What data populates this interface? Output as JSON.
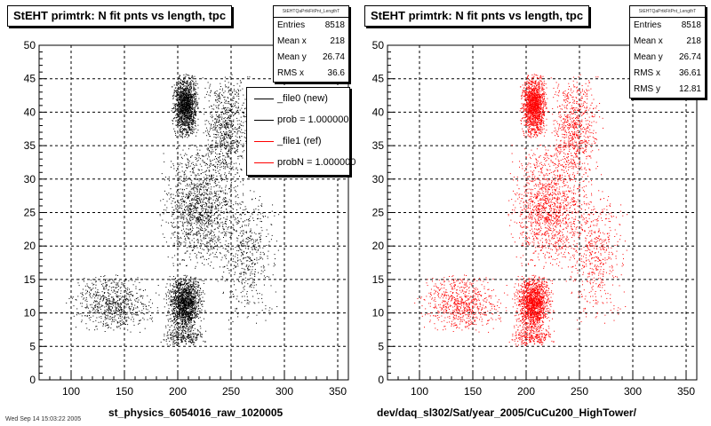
{
  "chart_data": [
    {
      "type": "scatter",
      "title": "StEHT primtrk: N fit pnts vs length, tpc",
      "xlabel": "st_physics_6054016_raw_1020005",
      "ylabel": "",
      "xlim": [
        70,
        360
      ],
      "ylim": [
        0,
        50
      ],
      "x_ticks": [
        100,
        150,
        200,
        250,
        300,
        350
      ],
      "y_ticks": [
        0,
        5,
        10,
        15,
        20,
        25,
        30,
        35,
        40,
        45,
        50
      ],
      "grid": true,
      "point_color": "#000000",
      "stats": {
        "header": "StEHTQaPrtkFitPnt_LengthT",
        "rows": [
          {
            "label": "Entries",
            "value": "8518"
          },
          {
            "label": "Mean x",
            "value": "218"
          },
          {
            "label": "Mean y",
            "value": "26.74"
          },
          {
            "label": "RMS x",
            "value": "36.6"
          }
        ]
      },
      "legend": {
        "placement": "top-right",
        "entries": [
          {
            "label": "_file0 (new)",
            "color": "#000000"
          },
          {
            "label": "prob = 1.000000",
            "color": "#000000"
          },
          {
            "label": "_file1 (ref)",
            "color": "#ff0000"
          },
          {
            "label": "probN = 1.000000",
            "color": "#ff0000"
          }
        ]
      },
      "clusters": [
        {
          "x_range": [
            192,
            222
          ],
          "y_range": [
            36,
            46
          ],
          "count": 1500
        },
        {
          "x_range": [
            185,
            228
          ],
          "y_range": [
            7,
            16
          ],
          "count": 1500
        },
        {
          "x_range": [
            175,
            270
          ],
          "y_range": [
            16,
            36
          ],
          "count": 1400
        },
        {
          "x_range": [
            215,
            275
          ],
          "y_range": [
            30,
            46
          ],
          "count": 700
        },
        {
          "x_range": [
            90,
            190
          ],
          "y_range": [
            7,
            16
          ],
          "count": 700
        },
        {
          "x_range": [
            230,
            300
          ],
          "y_range": [
            7,
            30
          ],
          "count": 500
        },
        {
          "x_range": [
            180,
            230
          ],
          "y_range": [
            5,
            8
          ],
          "count": 250
        }
      ]
    },
    {
      "type": "scatter",
      "title": "StEHT primtrk: N fit pnts vs length, tpc",
      "xlabel": "dev/daq_sl302/Sat/year_2005/CuCu200_HighTower/",
      "ylabel": "",
      "xlim": [
        70,
        360
      ],
      "ylim": [
        0,
        50
      ],
      "x_ticks": [
        100,
        150,
        200,
        250,
        300,
        350
      ],
      "y_ticks": [
        0,
        5,
        10,
        15,
        20,
        25,
        30,
        35,
        40,
        45,
        50
      ],
      "grid": true,
      "point_color": "#ff0000",
      "stats": {
        "header": "StEHTQaPrtkFitPnt_LengthT",
        "rows": [
          {
            "label": "Entries",
            "value": "8518"
          },
          {
            "label": "Mean x",
            "value": "218"
          },
          {
            "label": "Mean y",
            "value": "26.74"
          },
          {
            "label": "RMS x",
            "value": "36.61"
          },
          {
            "label": "RMS y",
            "value": "12.81"
          }
        ]
      },
      "clusters": [
        {
          "x_range": [
            192,
            222
          ],
          "y_range": [
            36,
            46
          ],
          "count": 1500
        },
        {
          "x_range": [
            185,
            228
          ],
          "y_range": [
            7,
            16
          ],
          "count": 1500
        },
        {
          "x_range": [
            175,
            270
          ],
          "y_range": [
            16,
            36
          ],
          "count": 1400
        },
        {
          "x_range": [
            215,
            275
          ],
          "y_range": [
            30,
            46
          ],
          "count": 700
        },
        {
          "x_range": [
            90,
            190
          ],
          "y_range": [
            7,
            16
          ],
          "count": 700
        },
        {
          "x_range": [
            230,
            300
          ],
          "y_range": [
            7,
            30
          ],
          "count": 500
        },
        {
          "x_range": [
            180,
            230
          ],
          "y_range": [
            5,
            8
          ],
          "count": 250
        }
      ]
    }
  ],
  "footer": "Wed Sep 14 15:03:22 2005"
}
